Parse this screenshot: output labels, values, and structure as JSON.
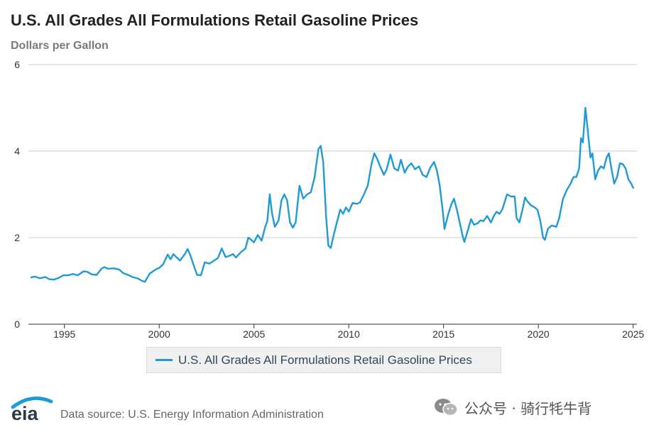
{
  "chart_data": {
    "type": "line",
    "title": "U.S. All Grades All Formulations Retail Gasoline Prices",
    "ylabel": "Dollars per Gallon",
    "xlabel": "",
    "xlim": [
      1993.1,
      2025.2
    ],
    "ylim": [
      0,
      6
    ],
    "x_ticks": [
      "1995",
      "2000",
      "2005",
      "2010",
      "2015",
      "2020",
      "2025"
    ],
    "y_ticks": [
      "0",
      "2",
      "4",
      "6"
    ],
    "grid": "horizontal",
    "legend_position": "bottom-center",
    "line_color": "#1f9ad6",
    "series": [
      {
        "name": "U.S. All Grades All Formulations Retail Gasoline Prices",
        "points": [
          [
            1993.25,
            1.08
          ],
          [
            1993.45,
            1.1
          ],
          [
            1993.7,
            1.06
          ],
          [
            1994.0,
            1.09
          ],
          [
            1994.2,
            1.04
          ],
          [
            1994.45,
            1.03
          ],
          [
            1994.7,
            1.07
          ],
          [
            1994.95,
            1.13
          ],
          [
            1995.2,
            1.13
          ],
          [
            1995.45,
            1.16
          ],
          [
            1995.7,
            1.13
          ],
          [
            1996.0,
            1.22
          ],
          [
            1996.2,
            1.21
          ],
          [
            1996.45,
            1.15
          ],
          [
            1996.7,
            1.14
          ],
          [
            1996.95,
            1.28
          ],
          [
            1997.1,
            1.32
          ],
          [
            1997.3,
            1.28
          ],
          [
            1997.6,
            1.29
          ],
          [
            1997.9,
            1.26
          ],
          [
            1998.1,
            1.18
          ],
          [
            1998.35,
            1.14
          ],
          [
            1998.6,
            1.09
          ],
          [
            1998.9,
            1.05
          ],
          [
            1999.1,
            1.0
          ],
          [
            1999.25,
            0.98
          ],
          [
            1999.5,
            1.17
          ],
          [
            1999.8,
            1.26
          ],
          [
            2000.0,
            1.3
          ],
          [
            2000.2,
            1.38
          ],
          [
            2000.45,
            1.61
          ],
          [
            2000.6,
            1.5
          ],
          [
            2000.75,
            1.62
          ],
          [
            2000.9,
            1.55
          ],
          [
            2001.1,
            1.47
          ],
          [
            2001.35,
            1.62
          ],
          [
            2001.5,
            1.74
          ],
          [
            2001.65,
            1.58
          ],
          [
            2001.85,
            1.32
          ],
          [
            2002.0,
            1.14
          ],
          [
            2002.2,
            1.13
          ],
          [
            2002.4,
            1.43
          ],
          [
            2002.65,
            1.4
          ],
          [
            2002.9,
            1.47
          ],
          [
            2003.1,
            1.53
          ],
          [
            2003.3,
            1.75
          ],
          [
            2003.5,
            1.55
          ],
          [
            2003.7,
            1.58
          ],
          [
            2003.9,
            1.62
          ],
          [
            2004.05,
            1.54
          ],
          [
            2004.3,
            1.66
          ],
          [
            2004.55,
            1.75
          ],
          [
            2004.7,
            2.0
          ],
          [
            2004.85,
            1.95
          ],
          [
            2005.0,
            1.89
          ],
          [
            2005.2,
            2.06
          ],
          [
            2005.4,
            1.93
          ],
          [
            2005.6,
            2.26
          ],
          [
            2005.7,
            2.38
          ],
          [
            2005.83,
            3.0
          ],
          [
            2005.95,
            2.56
          ],
          [
            2006.1,
            2.25
          ],
          [
            2006.3,
            2.4
          ],
          [
            2006.45,
            2.86
          ],
          [
            2006.6,
            3.0
          ],
          [
            2006.75,
            2.86
          ],
          [
            2006.9,
            2.35
          ],
          [
            2007.05,
            2.23
          ],
          [
            2007.2,
            2.35
          ],
          [
            2007.4,
            3.2
          ],
          [
            2007.6,
            2.9
          ],
          [
            2007.8,
            3.0
          ],
          [
            2008.0,
            3.05
          ],
          [
            2008.2,
            3.4
          ],
          [
            2008.4,
            4.05
          ],
          [
            2008.52,
            4.12
          ],
          [
            2008.65,
            3.75
          ],
          [
            2008.8,
            2.5
          ],
          [
            2008.92,
            1.82
          ],
          [
            2009.05,
            1.76
          ],
          [
            2009.2,
            2.05
          ],
          [
            2009.4,
            2.4
          ],
          [
            2009.55,
            2.65
          ],
          [
            2009.7,
            2.55
          ],
          [
            2009.85,
            2.7
          ],
          [
            2010.0,
            2.6
          ],
          [
            2010.2,
            2.8
          ],
          [
            2010.45,
            2.78
          ],
          [
            2010.6,
            2.82
          ],
          [
            2010.8,
            3.0
          ],
          [
            2011.0,
            3.2
          ],
          [
            2011.2,
            3.7
          ],
          [
            2011.35,
            3.95
          ],
          [
            2011.5,
            3.82
          ],
          [
            2011.7,
            3.6
          ],
          [
            2011.85,
            3.45
          ],
          [
            2012.0,
            3.58
          ],
          [
            2012.2,
            3.92
          ],
          [
            2012.4,
            3.6
          ],
          [
            2012.6,
            3.55
          ],
          [
            2012.75,
            3.8
          ],
          [
            2012.95,
            3.5
          ],
          [
            2013.1,
            3.63
          ],
          [
            2013.3,
            3.72
          ],
          [
            2013.5,
            3.58
          ],
          [
            2013.7,
            3.65
          ],
          [
            2013.9,
            3.45
          ],
          [
            2014.1,
            3.4
          ],
          [
            2014.3,
            3.62
          ],
          [
            2014.5,
            3.75
          ],
          [
            2014.65,
            3.55
          ],
          [
            2014.8,
            3.2
          ],
          [
            2014.95,
            2.65
          ],
          [
            2015.05,
            2.2
          ],
          [
            2015.25,
            2.55
          ],
          [
            2015.4,
            2.76
          ],
          [
            2015.55,
            2.9
          ],
          [
            2015.7,
            2.65
          ],
          [
            2015.85,
            2.35
          ],
          [
            2016.0,
            2.05
          ],
          [
            2016.1,
            1.9
          ],
          [
            2016.3,
            2.2
          ],
          [
            2016.45,
            2.43
          ],
          [
            2016.6,
            2.3
          ],
          [
            2016.8,
            2.33
          ],
          [
            2016.95,
            2.4
          ],
          [
            2017.1,
            2.38
          ],
          [
            2017.3,
            2.5
          ],
          [
            2017.5,
            2.35
          ],
          [
            2017.65,
            2.5
          ],
          [
            2017.8,
            2.6
          ],
          [
            2017.95,
            2.55
          ],
          [
            2018.1,
            2.65
          ],
          [
            2018.35,
            3.0
          ],
          [
            2018.55,
            2.95
          ],
          [
            2018.75,
            2.95
          ],
          [
            2018.85,
            2.45
          ],
          [
            2019.0,
            2.35
          ],
          [
            2019.2,
            2.72
          ],
          [
            2019.3,
            2.93
          ],
          [
            2019.4,
            2.85
          ],
          [
            2019.6,
            2.75
          ],
          [
            2019.8,
            2.7
          ],
          [
            2019.95,
            2.65
          ],
          [
            2020.1,
            2.4
          ],
          [
            2020.25,
            2.0
          ],
          [
            2020.35,
            1.95
          ],
          [
            2020.5,
            2.2
          ],
          [
            2020.7,
            2.28
          ],
          [
            2020.95,
            2.25
          ],
          [
            2021.1,
            2.45
          ],
          [
            2021.3,
            2.9
          ],
          [
            2021.5,
            3.1
          ],
          [
            2021.7,
            3.25
          ],
          [
            2021.85,
            3.4
          ],
          [
            2022.0,
            3.4
          ],
          [
            2022.15,
            3.6
          ],
          [
            2022.25,
            4.3
          ],
          [
            2022.35,
            4.2
          ],
          [
            2022.48,
            5.0
          ],
          [
            2022.6,
            4.5
          ],
          [
            2022.75,
            3.85
          ],
          [
            2022.85,
            3.95
          ],
          [
            2023.0,
            3.35
          ],
          [
            2023.15,
            3.55
          ],
          [
            2023.3,
            3.65
          ],
          [
            2023.45,
            3.6
          ],
          [
            2023.6,
            3.85
          ],
          [
            2023.72,
            3.95
          ],
          [
            2023.85,
            3.6
          ],
          [
            2024.0,
            3.25
          ],
          [
            2024.15,
            3.4
          ],
          [
            2024.3,
            3.72
          ],
          [
            2024.45,
            3.7
          ],
          [
            2024.6,
            3.6
          ],
          [
            2024.75,
            3.35
          ],
          [
            2024.9,
            3.25
          ],
          [
            2025.0,
            3.15
          ]
        ]
      }
    ]
  },
  "footer": {
    "logo_text": "eia",
    "source": "Data source: U.S. Energy Information Administration",
    "watermark": "公众号 · 骑行牦牛背"
  }
}
